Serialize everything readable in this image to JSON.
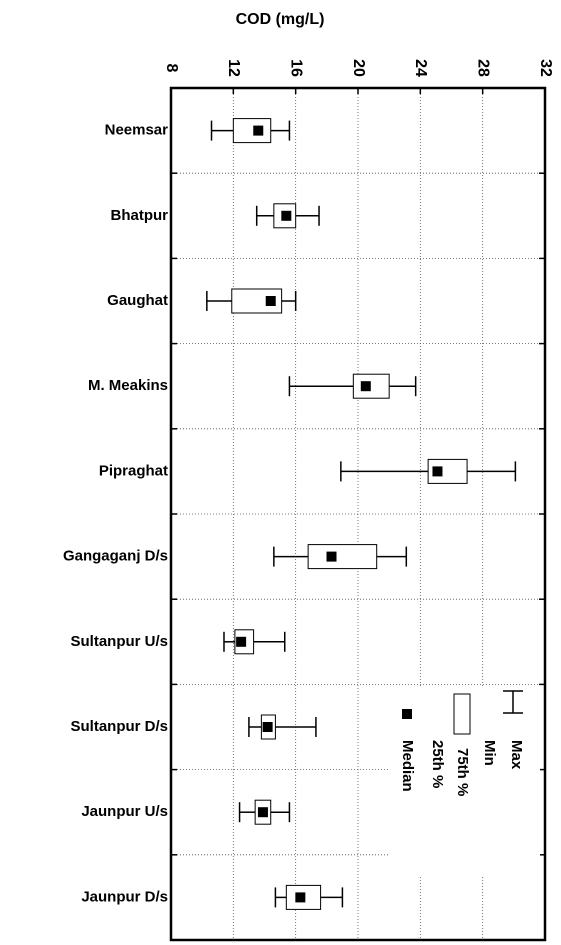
{
  "chart_data": {
    "type": "box",
    "x_label": "COD (mg/L)",
    "categories": [
      "Neemsar",
      "Bhatpur",
      "Gaughat",
      "M. Meakins",
      "Pipraghat",
      "Gangaganj D/s",
      "Sultanpur U/s",
      "Sultanpur D/s",
      "Jaunpur U/s",
      "Jaunpur D/s"
    ],
    "stats": {
      "min": [
        10.6,
        13.5,
        10.3,
        15.6,
        18.9,
        14.6,
        11.4,
        13.0,
        12.4,
        14.7
      ],
      "q1": [
        12.0,
        14.6,
        11.9,
        19.7,
        24.5,
        16.8,
        12.1,
        13.8,
        13.4,
        15.4
      ],
      "median": [
        13.6,
        15.4,
        14.4,
        20.5,
        25.1,
        18.3,
        12.5,
        14.2,
        13.9,
        16.3
      ],
      "q3": [
        14.4,
        16.0,
        15.1,
        22.0,
        27.0,
        21.2,
        13.3,
        14.7,
        14.4,
        17.6
      ],
      "max": [
        15.6,
        17.5,
        16.0,
        23.7,
        30.1,
        23.1,
        15.3,
        17.3,
        15.6,
        19.0
      ]
    },
    "legend": {
      "max": "Max",
      "min": "Min",
      "q3": "75th %",
      "q1": "25th %",
      "median": "Median"
    },
    "xlim": [
      8,
      32
    ],
    "xticks": [
      8,
      12,
      16,
      20,
      24,
      28,
      32
    ],
    "grid": true
  }
}
